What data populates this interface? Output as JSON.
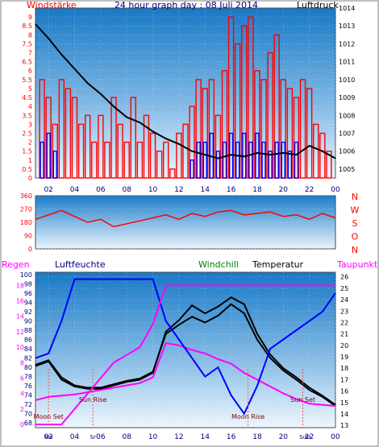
{
  "title": "24 hour graph day : 08 Juli 2014",
  "colors": {
    "wind": "#ff0000",
    "gust": "#0000ff",
    "pressure": "#000000",
    "direction": "#ff0000",
    "humidity": "#0000ff",
    "windchill": "#000000",
    "temperature": "#000000",
    "dewpoint": "#ff00ff",
    "rain": "#ff00ff",
    "accent_green": "#008000",
    "accent_navy": "#000080"
  },
  "chart_data": [
    {
      "name": "wind-pressure",
      "type": "bar",
      "title": "24 hour graph day : 08 Juli 2014",
      "ylabel": "Windstärke",
      "y2label": "Luftdruck",
      "ylim": [
        0,
        9.5
      ],
      "y2lim": [
        1004.5,
        1014
      ],
      "yticks": [
        "0",
        "0.5",
        "1",
        "1.5",
        "2",
        "2.5",
        "3",
        "3.5",
        "4",
        "4.5",
        "5",
        "5.5",
        "6",
        "6.5",
        "7",
        "7.5",
        "8",
        "8.5",
        "9"
      ],
      "y2ticks": [
        "1005",
        "1006",
        "1007",
        "1008",
        "1009",
        "1010",
        "1011",
        "1012",
        "1013",
        "1014"
      ],
      "xticks": [
        "02",
        "04",
        "06",
        "08",
        "10",
        "12",
        "14",
        "16",
        "18",
        "20",
        "22",
        "00"
      ],
      "xlim": [
        1,
        24
      ],
      "series": [
        {
          "name": "Windstärke",
          "color": "#ff0000",
          "x": [
            1.5,
            2.0,
            2.5,
            3.0,
            3.5,
            4.0,
            4.5,
            5.0,
            5.5,
            6.0,
            6.5,
            7.0,
            7.5,
            8.0,
            8.5,
            9.0,
            9.5,
            10.0,
            10.5,
            11.0,
            11.5,
            12.0,
            12.5,
            13.0,
            13.5,
            14.0,
            14.5,
            15.0,
            15.5,
            16.0,
            16.5,
            17.0,
            17.5,
            18.0,
            18.5,
            19.0,
            19.5,
            20.0,
            20.5,
            21.0,
            21.5,
            22.0,
            22.5,
            23.0,
            23.5
          ],
          "values": [
            5.5,
            4.5,
            3.0,
            5.5,
            5.0,
            4.5,
            3.0,
            3.5,
            2.0,
            3.5,
            2.0,
            4.5,
            3.0,
            2.0,
            4.5,
            2.0,
            3.5,
            2.5,
            1.5,
            2.0,
            0.5,
            2.5,
            3.0,
            4.0,
            5.5,
            5.0,
            5.5,
            3.5,
            6.0,
            9.0,
            7.5,
            8.5,
            9.0,
            6.0,
            5.5,
            7.0,
            8.0,
            5.5,
            5.0,
            4.5,
            5.5,
            5.0,
            3.0,
            2.5,
            1.5
          ]
        },
        {
          "name": "Böen",
          "color": "#0000ff",
          "x": [
            1.5,
            2.0,
            2.5,
            13.0,
            13.5,
            14.0,
            14.5,
            15.0,
            15.5,
            16.0,
            16.5,
            17.0,
            17.5,
            18.0,
            18.5,
            19.0,
            19.5,
            20.0,
            20.5,
            21.0
          ],
          "values": [
            2.0,
            2.5,
            1.5,
            1.0,
            2.0,
            2.0,
            2.5,
            1.5,
            2.0,
            2.5,
            2.0,
            2.5,
            2.0,
            2.5,
            2.0,
            1.5,
            2.0,
            2.0,
            1.5,
            2.0
          ]
        },
        {
          "name": "Luftdruck",
          "color": "#000000",
          "axis": "y2",
          "x": [
            1,
            2,
            3,
            4,
            5,
            6,
            7,
            8,
            9,
            10,
            11,
            12,
            13,
            14,
            15,
            16,
            17,
            18,
            19,
            20,
            21,
            22,
            23,
            24
          ],
          "values": [
            1013.1,
            1012.3,
            1011.4,
            1010.6,
            1009.8,
            1009.2,
            1008.5,
            1007.9,
            1007.6,
            1007.1,
            1006.7,
            1006.4,
            1006.0,
            1005.8,
            1005.6,
            1005.8,
            1005.7,
            1005.9,
            1005.8,
            1005.9,
            1005.8,
            1006.3,
            1006.0,
            1005.6
          ]
        }
      ]
    },
    {
      "name": "wind-direction",
      "type": "line",
      "yticks": [
        "0",
        "90",
        "180",
        "270",
        "360"
      ],
      "ylim": [
        0,
        360
      ],
      "directions": [
        "N",
        "W",
        "S",
        "O",
        "N"
      ],
      "series": [
        {
          "name": "Windrichtung",
          "color": "#ff0000",
          "x": [
            1,
            2,
            3,
            4,
            5,
            6,
            7,
            8,
            9,
            10,
            11,
            12,
            13,
            14,
            15,
            16,
            17,
            18,
            19,
            20,
            21,
            22,
            23,
            24
          ],
          "values": [
            200,
            230,
            260,
            220,
            180,
            200,
            150,
            170,
            190,
            210,
            230,
            200,
            240,
            220,
            250,
            260,
            230,
            240,
            250,
            220,
            230,
            200,
            240,
            210
          ]
        }
      ]
    },
    {
      "name": "temperature-humidity",
      "type": "line",
      "labels": {
        "rain": "Regen",
        "humidity": "Luftfeuchte",
        "windchill": "Windchill",
        "temperature": "Temperatur",
        "dewpoint": "Taupunkt"
      },
      "y_rain_ticks": [
        "0",
        "2",
        "4",
        "6",
        "8",
        "10",
        "12",
        "14",
        "16",
        "18"
      ],
      "y_humidity_ticks": [
        "68",
        "70",
        "72",
        "74",
        "76",
        "78",
        "80",
        "82",
        "84",
        "86",
        "88",
        "90",
        "92",
        "94",
        "96",
        "98",
        "100"
      ],
      "y_temp_ticks": [
        "13",
        "14",
        "15",
        "16",
        "17",
        "18",
        "19",
        "20",
        "21",
        "22",
        "23",
        "24",
        "25",
        "26"
      ],
      "ylim_temp": [
        12.8,
        26.4
      ],
      "ylim_humidity": [
        67,
        100.5
      ],
      "xticks": [
        "02",
        "04",
        "06",
        "08",
        "10",
        "12",
        "14",
        "16",
        "18",
        "20",
        "22",
        "00"
      ],
      "annotations": [
        {
          "text": "Moon Set",
          "x": 2.0
        },
        {
          "text": "Sun Rise",
          "x": 5.4
        },
        {
          "text": "Moon Rise",
          "x": 17.3
        },
        {
          "text": "Sun Set",
          "x": 21.5
        }
      ],
      "bottom_annotations": [
        "Mo",
        "Sr",
        "Su",
        "Ss"
      ],
      "series": [
        {
          "name": "Temperatur",
          "color": "#000000",
          "x": [
            1,
            2,
            3,
            4,
            5,
            6,
            7,
            8,
            9,
            10,
            11,
            12,
            13,
            14,
            15,
            16,
            17,
            18,
            19,
            20,
            21,
            22,
            23,
            24
          ],
          "values": [
            18.2,
            18.6,
            17.0,
            16.4,
            16.2,
            16.2,
            16.5,
            16.8,
            17.0,
            17.6,
            21.2,
            22.2,
            23.5,
            22.8,
            23.4,
            24.2,
            23.6,
            21.0,
            19.2,
            18.0,
            17.2,
            16.3,
            15.6,
            14.8
          ]
        },
        {
          "name": "Windchill",
          "color": "#000000",
          "x": [
            1,
            2,
            3,
            4,
            5,
            6,
            7,
            8,
            9,
            10,
            11,
            12,
            13,
            14,
            15,
            16,
            17,
            18,
            19,
            20,
            21,
            22,
            23,
            24
          ],
          "values": [
            18.3,
            18.7,
            17.2,
            16.5,
            16.3,
            16.3,
            16.6,
            16.9,
            17.1,
            17.7,
            21.0,
            21.8,
            22.5,
            22.0,
            22.6,
            23.6,
            22.8,
            20.5,
            18.9,
            17.8,
            17.0,
            16.1,
            15.5,
            14.7
          ]
        },
        {
          "name": "Taupunkt",
          "color": "#ff00ff",
          "x": [
            1,
            2,
            3,
            4,
            5,
            6,
            7,
            8,
            9,
            10,
            11,
            12,
            13,
            14,
            15,
            16,
            17,
            18,
            19,
            20,
            21,
            22,
            23,
            24
          ],
          "values": [
            15.2,
            15.5,
            15.6,
            15.7,
            15.9,
            16.1,
            16.3,
            16.5,
            16.7,
            17.2,
            20.2,
            20.0,
            19.6,
            19.3,
            18.8,
            18.4,
            17.6,
            17.0,
            16.4,
            15.8,
            15.3,
            14.9,
            14.8,
            14.7
          ]
        },
        {
          "name": "Luftfeuchte",
          "color": "#0000ff",
          "axis": "humidity",
          "x": [
            1,
            2,
            3,
            4,
            5,
            6,
            7,
            8,
            9,
            10,
            11,
            12,
            13,
            14,
            15,
            16,
            17,
            18,
            19,
            20,
            21,
            22,
            23,
            24
          ],
          "values": [
            82,
            83,
            90,
            99,
            99,
            99,
            99,
            99,
            99,
            99,
            90,
            86,
            82,
            78,
            80,
            74,
            70,
            76,
            84,
            86,
            88,
            90,
            92,
            96
          ]
        },
        {
          "name": "Regen",
          "color": "#ff00ff",
          "axis": "rain",
          "x": [
            1,
            2,
            3,
            4,
            5,
            6,
            7,
            8,
            9,
            10,
            11,
            12,
            13,
            14,
            15,
            16,
            17,
            18,
            19,
            20,
            21,
            22,
            23,
            24
          ],
          "values": [
            0,
            0,
            0,
            2,
            4,
            6,
            8,
            9,
            10,
            13,
            18,
            18,
            18,
            18,
            18,
            18,
            18,
            18,
            18,
            18,
            18,
            18,
            18,
            18
          ]
        }
      ]
    }
  ]
}
